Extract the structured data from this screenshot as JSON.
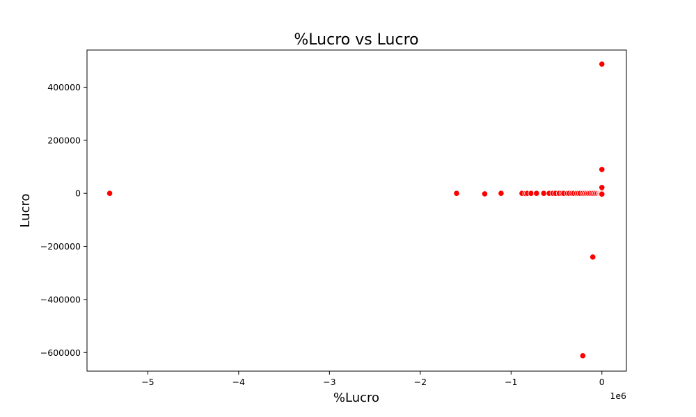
{
  "chart_data": {
    "type": "scatter",
    "title": "%Lucro vs Lucro",
    "xlabel": "%Lucro",
    "ylabel": "Lucro",
    "x_offset_label": "1e6",
    "xlim": [
      -5.67,
      0.27
    ],
    "ylim": [
      -670000,
      540000
    ],
    "x_ticks": [
      -5,
      -4,
      -3,
      -2,
      -1,
      0
    ],
    "x_tick_labels": [
      "−5",
      "−4",
      "−3",
      "−2",
      "−1",
      "0"
    ],
    "y_ticks": [
      400000,
      200000,
      0,
      -200000,
      -400000,
      -600000
    ],
    "y_tick_labels": [
      "400000",
      "200000",
      "0",
      "−200000",
      "−400000",
      "−600000"
    ],
    "grid": false,
    "legend": "none",
    "marker_color": "#ff0000",
    "marker_edge_color": "#ffffff",
    "x_values_scale": "1e6",
    "points": [
      {
        "x": -5.42,
        "y": 0
      },
      {
        "x": -1.6,
        "y": 0
      },
      {
        "x": -1.29,
        "y": -2000
      },
      {
        "x": -1.11,
        "y": 0
      },
      {
        "x": -0.88,
        "y": 0
      },
      {
        "x": -0.84,
        "y": -1000
      },
      {
        "x": -0.82,
        "y": 0
      },
      {
        "x": -0.78,
        "y": 0
      },
      {
        "x": -0.72,
        "y": 0
      },
      {
        "x": -0.64,
        "y": 0
      },
      {
        "x": -0.58,
        "y": 0
      },
      {
        "x": -0.54,
        "y": 0
      },
      {
        "x": -0.51,
        "y": 0
      },
      {
        "x": -0.47,
        "y": 0
      },
      {
        "x": -0.44,
        "y": 0
      },
      {
        "x": -0.42,
        "y": 0
      },
      {
        "x": -0.38,
        "y": 0
      },
      {
        "x": -0.36,
        "y": 0
      },
      {
        "x": -0.33,
        "y": 0
      },
      {
        "x": -0.31,
        "y": 0
      },
      {
        "x": -0.28,
        "y": 0
      },
      {
        "x": -0.26,
        "y": 0
      },
      {
        "x": -0.24,
        "y": 0
      },
      {
        "x": -0.21,
        "y": 0
      },
      {
        "x": -0.19,
        "y": 0
      },
      {
        "x": -0.17,
        "y": 0
      },
      {
        "x": -0.15,
        "y": 0
      },
      {
        "x": -0.13,
        "y": 0
      },
      {
        "x": -0.11,
        "y": 0
      },
      {
        "x": -0.09,
        "y": 0
      },
      {
        "x": -0.07,
        "y": 0
      },
      {
        "x": -0.05,
        "y": 0
      },
      {
        "x": -0.03,
        "y": 0
      },
      {
        "x": -0.02,
        "y": 0
      },
      {
        "x": -0.01,
        "y": 0
      },
      {
        "x": 0.0,
        "y": 0
      },
      {
        "x": 0.0,
        "y": -3000
      },
      {
        "x": 0.0,
        "y": 22000
      },
      {
        "x": 0.0,
        "y": 90000
      },
      {
        "x": 0.0,
        "y": 487000
      },
      {
        "x": -0.1,
        "y": -240000
      },
      {
        "x": -0.21,
        "y": -612000
      }
    ]
  }
}
